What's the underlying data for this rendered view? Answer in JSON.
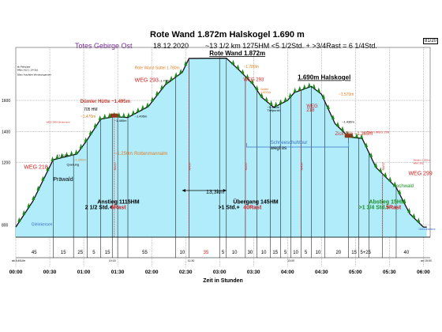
{
  "header": {
    "title": "Rote Wand 1.872m  Halskogel  1.690 m",
    "left_title": "Totes Gebirge Ost",
    "date": "18.12.2020",
    "stats": "~13 1/2 km   1275HM   <5 1/2Std. + >3/4Rast = 6 1/4Std.",
    "page_no": "81/20"
  },
  "chart_data": {
    "type": "area",
    "title": "Rote Wand 1.872m  Halskogel  1.690 m",
    "xlabel": "Zeit in Stunden",
    "ylabel": "",
    "x_ticks": [
      "00:00",
      "00:30",
      "01:00",
      "01:30",
      "02:00",
      "02:30",
      "03:00",
      "03:30",
      "04:00",
      "04:30",
      "05:00",
      "05:30",
      "06:00"
    ],
    "y_ticks": [
      {
        "v": 800,
        "label": "800"
      },
      {
        "v": 1200,
        "label": "1200"
      },
      {
        "v": 1400,
        "label": "1400"
      },
      {
        "v": 1600,
        "label": "1600"
      }
    ],
    "xlim": [
      0,
      6.1
    ],
    "ylim": [
      720,
      1890
    ],
    "grid": true,
    "profile": [
      {
        "x": 0.0,
        "y": 785
      },
      {
        "x": 0.25,
        "y": 950
      },
      {
        "x": 0.55,
        "y": 1218
      },
      {
        "x": 0.9,
        "y": 1255
      },
      {
        "x": 1.05,
        "y": 1345
      },
      {
        "x": 1.25,
        "y": 1480
      },
      {
        "x": 1.45,
        "y": 1495
      },
      {
        "x": 1.65,
        "y": 1490
      },
      {
        "x": 1.95,
        "y": 1560
      },
      {
        "x": 2.2,
        "y": 1700
      },
      {
        "x": 2.45,
        "y": 1780
      },
      {
        "x": 2.55,
        "y": 1870
      },
      {
        "x": 3.1,
        "y": 1872
      },
      {
        "x": 3.3,
        "y": 1790
      },
      {
        "x": 3.5,
        "y": 1700
      },
      {
        "x": 3.62,
        "y": 1620
      },
      {
        "x": 3.8,
        "y": 1555
      },
      {
        "x": 4.0,
        "y": 1600
      },
      {
        "x": 4.1,
        "y": 1650
      },
      {
        "x": 4.35,
        "y": 1690
      },
      {
        "x": 4.5,
        "y": 1640
      },
      {
        "x": 4.7,
        "y": 1450
      },
      {
        "x": 4.9,
        "y": 1365
      },
      {
        "x": 5.1,
        "y": 1355
      },
      {
        "x": 5.3,
        "y": 1170
      },
      {
        "x": 5.6,
        "y": 1040
      },
      {
        "x": 5.8,
        "y": 870
      },
      {
        "x": 6.0,
        "y": 785
      },
      {
        "x": 6.05,
        "y": 785
      }
    ],
    "annotations": [
      {
        "text": "Rote Wand 1.872m",
        "x": 2.85,
        "y": 1890,
        "color": "#000000",
        "size": 8,
        "bold": true,
        "underline": true
      },
      {
        "text": "1.690m Halskogel",
        "x": 4.15,
        "y": 1735,
        "color": "#000000",
        "size": 8,
        "bold": true,
        "underline": true
      },
      {
        "text": "WEG 293",
        "x": 1.75,
        "y": 1720,
        "color": "#d22020",
        "size": 7
      },
      {
        "text": "WEG 293",
        "x": 3.35,
        "y": 1725,
        "color": "#d22020",
        "size": 6
      },
      {
        "text": "WEG 218",
        "x": 0.12,
        "y": 1160,
        "color": "#d22020",
        "size": 7
      },
      {
        "text": "WEG 299",
        "x": 5.78,
        "y": 1120,
        "color": "#d22020",
        "size": 7
      },
      {
        "text": "WEG",
        "x": 4.28,
        "y": 1555,
        "color": "#d22020",
        "size": 6
      },
      {
        "text": "218",
        "x": 4.28,
        "y": 1530,
        "color": "#d22020",
        "size": 6
      },
      {
        "text": "Dümler Hütte ~1.495m",
        "x": 0.95,
        "y": 1585,
        "color": "#c0392b",
        "size": 6,
        "bold": true
      },
      {
        "text": "705 HM",
        "x": 1.0,
        "y": 1535,
        "color": "#000000",
        "size": 5
      },
      {
        "text": "~1.470m",
        "x": 0.95,
        "y": 1488,
        "color": "#e67e22",
        "size": 5
      },
      {
        "text": "~1.480m",
        "x": 1.45,
        "y": 1462,
        "color": "#000000",
        "size": 4
      },
      {
        "text": "~1.495m",
        "x": 1.75,
        "y": 1490,
        "color": "#000000",
        "size": 4
      },
      {
        "text": "~1.250m Rottenmannalm",
        "x": 1.45,
        "y": 1250,
        "color": "#e67e22",
        "size": 6
      },
      {
        "text": "~1.220m",
        "x": 0.6,
        "y": 1240,
        "color": "#000000",
        "size": 4
      },
      {
        "text": "~1.200m",
        "x": 0.85,
        "y": 1210,
        "color": "#e67e22",
        "size": 4
      },
      {
        "text": "Querung",
        "x": 0.75,
        "y": 1180,
        "color": "#000000",
        "size": 4
      },
      {
        "text": "Präwald",
        "x": 0.55,
        "y": 1080,
        "color": "#000000",
        "size": 7
      },
      {
        "text": "Rote Wand Sattel 1.780m",
        "x": 1.75,
        "y": 1800,
        "color": "#e67e22",
        "size": 5
      },
      {
        "text": "~1.700m",
        "x": 2.1,
        "y": 1720,
        "color": "#000000",
        "size": 4
      },
      {
        "text": "~1.780m",
        "x": 3.35,
        "y": 1808,
        "color": "#e67e22",
        "size": 5
      },
      {
        "text": "Sattel",
        "x": 3.6,
        "y": 1665,
        "color": "#e67e22",
        "size": 4
      },
      {
        "text": "1.600m",
        "x": 3.6,
        "y": 1645,
        "color": "#e67e22",
        "size": 4
      },
      {
        "text": "~1.555m",
        "x": 3.7,
        "y": 1550,
        "color": "#000000",
        "size": 4
      },
      {
        "text": "Tiefpunkt",
        "x": 3.7,
        "y": 1528,
        "color": "#000000",
        "size": 4
      },
      {
        "text": "~1.570m",
        "x": 4.75,
        "y": 1630,
        "color": "#e67e22",
        "size": 5
      },
      {
        "text": "Zick Alm ~1.365m",
        "x": 4.7,
        "y": 1375,
        "color": "#c0392b",
        "size": 6
      },
      {
        "text": "~1.436m",
        "x": 4.8,
        "y": 1455,
        "color": "#000000",
        "size": 4
      },
      {
        "text": "~1.360m WEG 299",
        "x": 5.1,
        "y": 1390,
        "color": "#d22020",
        "size": 4
      },
      {
        "text": "Schneeschuhtour",
        "x": 3.75,
        "y": 1320,
        "color": "#3a6fc4",
        "size": 6
      },
      {
        "text": "wegl os",
        "x": 3.75,
        "y": 1285,
        "color": "#000000",
        "size": 6
      },
      {
        "text": "13,3km",
        "x": 2.8,
        "y": 1000,
        "color": "#000000",
        "size": 7
      },
      {
        "text": "Hochwald",
        "x": 5.55,
        "y": 1040,
        "color": "#1a8a1a",
        "size": 6
      },
      {
        "text": "Gleinkersee",
        "x": 0.23,
        "y": 795,
        "color": "#3a6fc4",
        "size": 5
      },
      {
        "text": "Gleinkersee",
        "x": 5.93,
        "y": 765,
        "color": "#3a6fc4",
        "size": 4
      },
      {
        "text": "Anstieg 1115HM",
        "x": 1.2,
        "y": 935,
        "color": "#000000",
        "size": 7,
        "bold": true
      },
      {
        "text": "2 1/2 Std.+",
        "x": 1.02,
        "y": 900,
        "color": "#000000",
        "size": 7,
        "bold": true
      },
      {
        "text": "5Rast",
        "x": 1.4,
        "y": 900,
        "color": "#d22020",
        "size": 7,
        "bold": true
      },
      {
        "text": "Übergang 145HM",
        "x": 3.2,
        "y": 935,
        "color": "#000000",
        "size": 7,
        "bold": true
      },
      {
        "text": ">1 Std.+",
        "x": 2.98,
        "y": 900,
        "color": "#000000",
        "size": 7,
        "bold": true
      },
      {
        "text": "40Rast",
        "x": 3.35,
        "y": 900,
        "color": "#d22020",
        "size": 7,
        "bold": true
      },
      {
        "text": "Abstieg  15HM",
        "x": 5.2,
        "y": 935,
        "color": "#1a8a1a",
        "size": 7,
        "bold": true
      },
      {
        "text": ">1 3/4 Std.+",
        "x": 5.05,
        "y": 900,
        "color": "#1a8a1a",
        "size": 7,
        "bold": true
      },
      {
        "text": "5Rast",
        "x": 5.45,
        "y": 900,
        "color": "#d22020",
        "size": 7,
        "bold": true
      },
      {
        "text": "ab Parkplatz",
        "x": 0.02,
        "y": 1810,
        "color": "#000000",
        "size": 3
      },
      {
        "text": "94km A12 1 1/4 Std.",
        "x": 0.02,
        "y": 1790,
        "color": "#000000",
        "size": 3
      },
      {
        "text": "92km Autofahrt Windischgarsten",
        "x": 0.02,
        "y": 1760,
        "color": "#000000",
        "size": 3
      },
      {
        "text": "WEG 299 Gleinkersee",
        "x": 0.45,
        "y": 1455,
        "color": "#d22020",
        "size": 3
      },
      {
        "text": "Seealm 1.530m",
        "x": 5.85,
        "y": 1210,
        "color": "#d22020",
        "size": 3
      },
      {
        "text": "WEG 292",
        "x": 5.85,
        "y": 1190,
        "color": "#d22020",
        "size": 3
      }
    ],
    "vlines": [
      0.55,
      0.85,
      1.05,
      1.25,
      1.42,
      1.5,
      1.65,
      2.35,
      2.55,
      3.0,
      3.1,
      3.38,
      3.55,
      3.75,
      3.9,
      4.05,
      4.2,
      4.35,
      4.55,
      4.9,
      5.05,
      5.2,
      5.4,
      5.6
    ],
    "red_markers": [
      {
        "x": 1.45,
        "label": "RAST"
      },
      {
        "x": 2.55,
        "label": "RAST"
      },
      {
        "x": 3.38,
        "label": "RAST"
      },
      {
        "x": 4.2,
        "label": "RAST"
      },
      {
        "x": 5.4,
        "label": "RAST"
      }
    ],
    "huts": [
      {
        "x": 1.45,
        "y": 1495
      },
      {
        "x": 4.9,
        "y": 1365
      }
    ],
    "segment_minutes": [
      {
        "x": 0.27,
        "label": "45"
      },
      {
        "x": 0.7,
        "label": "15"
      },
      {
        "x": 0.95,
        "label": "25"
      },
      {
        "x": 1.15,
        "label": "5"
      },
      {
        "x": 1.35,
        "label": "15"
      },
      {
        "x": 1.9,
        "label": "55"
      },
      {
        "x": 2.45,
        "label": "10"
      },
      {
        "x": 2.8,
        "label": "35"
      },
      {
        "x": 3.05,
        "label": "5"
      },
      {
        "x": 3.22,
        "label": "10"
      },
      {
        "x": 3.45,
        "label": "30"
      },
      {
        "x": 3.65,
        "label": "10"
      },
      {
        "x": 3.82,
        "label": "15"
      },
      {
        "x": 3.97,
        "label": "5"
      },
      {
        "x": 4.12,
        "label": "10"
      },
      {
        "x": 4.27,
        "label": "5"
      },
      {
        "x": 4.45,
        "label": "10"
      },
      {
        "x": 4.75,
        "label": "20"
      },
      {
        "x": 4.98,
        "label": "15"
      },
      {
        "x": 5.15,
        "label": "5+25"
      },
      {
        "x": 5.75,
        "label": "40"
      }
    ],
    "time_marks": [
      {
        "x": 0.04,
        "label": "ab 8:45Uhr"
      },
      {
        "x": 1.42,
        "label": "10:15"
      },
      {
        "x": 2.58,
        "label": "11:30"
      },
      {
        "x": 4.05,
        "label": "13:00"
      },
      {
        "x": 6.04,
        "label": "an 15:00"
      }
    ],
    "km_arrow": {
      "x1": 2.45,
      "x2": 3.1,
      "y": 1020
    },
    "snow_bracket": {
      "x1": 3.4,
      "x2": 4.9,
      "y": 1300
    }
  },
  "colors": {
    "fill": "#b0ecfa",
    "line": "#111111",
    "grid": "#8a8a8a",
    "tree": "#1a8a1a",
    "red": "#d22020",
    "orange": "#e67e22"
  }
}
